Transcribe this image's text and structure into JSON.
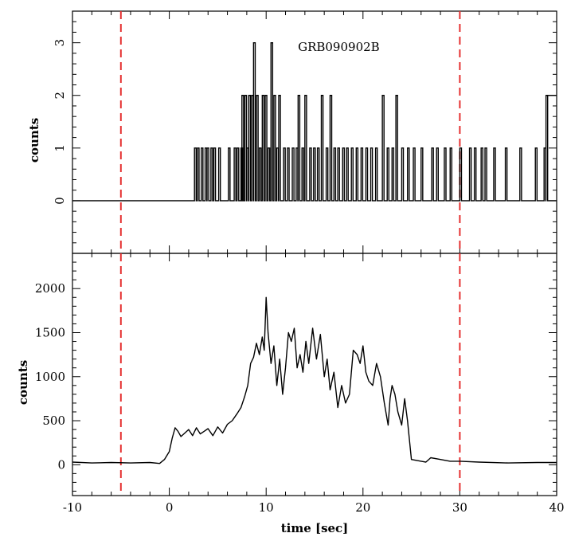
{
  "chart_data": [
    {
      "type": "line",
      "panel": "top",
      "title": "",
      "xlabel": "",
      "ylabel": "counts",
      "annotation": "GRB090902B",
      "xlim": [
        -10,
        40
      ],
      "ylim": [
        -1,
        3.6
      ],
      "yticks": [
        0,
        1,
        2,
        3
      ],
      "xticks": [
        -10,
        0,
        10,
        20,
        30,
        40
      ],
      "grid": false,
      "line_style": "steps",
      "reference_lines": [
        {
          "x": -5,
          "style": "dashed",
          "color": "#e53030"
        },
        {
          "x": 30,
          "style": "dashed",
          "color": "#e53030"
        }
      ],
      "events": [
        {
          "t": 2.6,
          "c": 1
        },
        {
          "t": 2.9,
          "c": 1
        },
        {
          "t": 3.3,
          "c": 1
        },
        {
          "t": 3.7,
          "c": 1
        },
        {
          "t": 3.9,
          "c": 1
        },
        {
          "t": 4.3,
          "c": 1
        },
        {
          "t": 4.6,
          "c": 1
        },
        {
          "t": 5.1,
          "c": 1
        },
        {
          "t": 6.1,
          "c": 1
        },
        {
          "t": 6.7,
          "c": 1
        },
        {
          "t": 7.0,
          "c": 1
        },
        {
          "t": 7.4,
          "c": 1
        },
        {
          "t": 7.5,
          "c": 2
        },
        {
          "t": 7.8,
          "c": 2
        },
        {
          "t": 8.0,
          "c": 1
        },
        {
          "t": 8.2,
          "c": 2
        },
        {
          "t": 8.5,
          "c": 2
        },
        {
          "t": 8.7,
          "c": 3
        },
        {
          "t": 9.0,
          "c": 2
        },
        {
          "t": 9.3,
          "c": 1
        },
        {
          "t": 9.6,
          "c": 2
        },
        {
          "t": 9.9,
          "c": 2
        },
        {
          "t": 10.2,
          "c": 1
        },
        {
          "t": 10.5,
          "c": 3
        },
        {
          "t": 10.8,
          "c": 2
        },
        {
          "t": 11.1,
          "c": 1
        },
        {
          "t": 11.3,
          "c": 2
        },
        {
          "t": 11.8,
          "c": 1
        },
        {
          "t": 12.2,
          "c": 1
        },
        {
          "t": 12.7,
          "c": 1
        },
        {
          "t": 13.1,
          "c": 1
        },
        {
          "t": 13.3,
          "c": 2
        },
        {
          "t": 13.7,
          "c": 1
        },
        {
          "t": 14.0,
          "c": 2
        },
        {
          "t": 14.5,
          "c": 1
        },
        {
          "t": 14.9,
          "c": 1
        },
        {
          "t": 15.3,
          "c": 1
        },
        {
          "t": 15.7,
          "c": 2
        },
        {
          "t": 16.2,
          "c": 1
        },
        {
          "t": 16.6,
          "c": 2
        },
        {
          "t": 17.0,
          "c": 1
        },
        {
          "t": 17.4,
          "c": 1
        },
        {
          "t": 17.9,
          "c": 1
        },
        {
          "t": 18.3,
          "c": 1
        },
        {
          "t": 18.8,
          "c": 1
        },
        {
          "t": 19.3,
          "c": 1
        },
        {
          "t": 19.8,
          "c": 1
        },
        {
          "t": 20.3,
          "c": 1
        },
        {
          "t": 20.8,
          "c": 1
        },
        {
          "t": 21.3,
          "c": 1
        },
        {
          "t": 22.0,
          "c": 2
        },
        {
          "t": 22.5,
          "c": 1
        },
        {
          "t": 23.0,
          "c": 1
        },
        {
          "t": 23.4,
          "c": 2
        },
        {
          "t": 24.0,
          "c": 1
        },
        {
          "t": 24.6,
          "c": 1
        },
        {
          "t": 25.2,
          "c": 1
        },
        {
          "t": 26.0,
          "c": 1
        },
        {
          "t": 27.1,
          "c": 1
        },
        {
          "t": 27.6,
          "c": 1
        },
        {
          "t": 28.4,
          "c": 1
        },
        {
          "t": 29.0,
          "c": 1
        },
        {
          "t": 30.0,
          "c": 1
        },
        {
          "t": 31.0,
          "c": 1
        },
        {
          "t": 31.5,
          "c": 1
        },
        {
          "t": 32.2,
          "c": 1
        },
        {
          "t": 32.6,
          "c": 1
        },
        {
          "t": 33.5,
          "c": 1
        },
        {
          "t": 34.7,
          "c": 1
        },
        {
          "t": 36.2,
          "c": 1
        },
        {
          "t": 37.8,
          "c": 1
        },
        {
          "t": 38.7,
          "c": 1
        },
        {
          "t": 38.9,
          "c": 2
        }
      ]
    },
    {
      "type": "line",
      "panel": "bottom",
      "title": "",
      "xlabel": "time [sec]",
      "ylabel": "counts",
      "xlim": [
        -10,
        40
      ],
      "ylim": [
        -350,
        2400
      ],
      "yticks": [
        0,
        500,
        1000,
        1500,
        2000
      ],
      "xticks": [
        -10,
        0,
        10,
        20,
        30,
        40
      ],
      "grid": false,
      "reference_lines": [
        {
          "x": -5,
          "style": "dashed",
          "color": "#e53030"
        },
        {
          "x": 30,
          "style": "dashed",
          "color": "#e53030"
        }
      ],
      "x": [
        -10,
        -8,
        -6,
        -4,
        -2,
        -1,
        -0.5,
        0,
        0.3,
        0.6,
        0.9,
        1.2,
        1.6,
        2.0,
        2.4,
        2.8,
        3.2,
        3.6,
        4.0,
        4.5,
        5.0,
        5.5,
        6.0,
        6.5,
        7.0,
        7.4,
        7.8,
        8.1,
        8.4,
        8.7,
        9.0,
        9.3,
        9.6,
        9.8,
        10.0,
        10.2,
        10.5,
        10.8,
        11.1,
        11.4,
        11.7,
        12.0,
        12.3,
        12.6,
        12.9,
        13.2,
        13.5,
        13.8,
        14.1,
        14.4,
        14.8,
        15.2,
        15.6,
        16.0,
        16.3,
        16.6,
        17.0,
        17.4,
        17.8,
        18.2,
        18.6,
        19.0,
        19.4,
        19.7,
        20.0,
        20.3,
        20.6,
        21.0,
        21.4,
        21.8,
        22.2,
        22.6,
        22.8,
        23.0,
        23.3,
        23.6,
        24.0,
        24.3,
        24.6,
        25.0,
        25.5,
        26.0,
        26.5,
        27.0,
        28.0,
        29.0,
        30.0,
        32.0,
        35.0,
        38.0,
        40.0
      ],
      "y": [
        30,
        20,
        25,
        20,
        25,
        15,
        60,
        150,
        300,
        420,
        380,
        320,
        360,
        400,
        330,
        420,
        350,
        380,
        410,
        330,
        430,
        360,
        460,
        500,
        580,
        650,
        780,
        900,
        1150,
        1220,
        1380,
        1250,
        1450,
        1300,
        1900,
        1500,
        1150,
        1350,
        900,
        1200,
        800,
        1100,
        1500,
        1400,
        1550,
        1100,
        1250,
        1050,
        1400,
        1150,
        1550,
        1200,
        1480,
        1000,
        1200,
        850,
        1050,
        650,
        900,
        700,
        800,
        1300,
        1250,
        1150,
        1350,
        1050,
        950,
        900,
        1150,
        1000,
        700,
        450,
        750,
        900,
        800,
        600,
        450,
        750,
        500,
        60,
        50,
        40,
        30,
        80,
        60,
        40,
        40,
        30,
        20,
        25,
        25
      ]
    }
  ]
}
